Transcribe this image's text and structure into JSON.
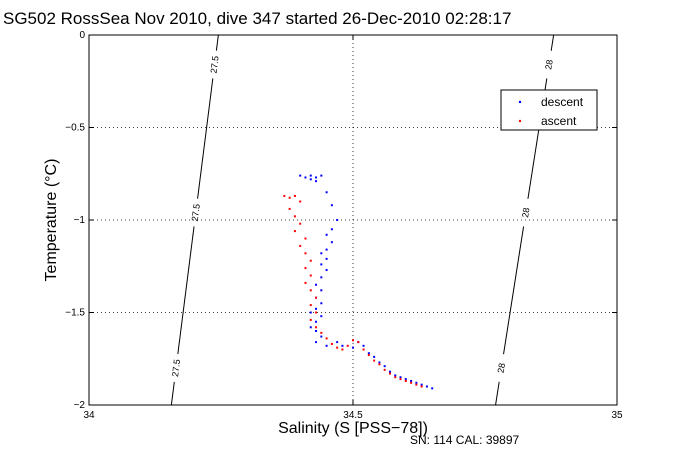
{
  "chart_data": {
    "type": "scatter",
    "title": "SG502 RossSea Nov 2010, dive 347 started 26-Dec-2010 02:28:17",
    "xlabel": "Salinity (S [PSS−78])",
    "ylabel": "Temperature (°C)",
    "xlim": [
      34,
      35
    ],
    "ylim": [
      -2,
      0
    ],
    "x_ticks": [
      34,
      34.5,
      35
    ],
    "x_tick_labels": [
      "34",
      "34.5",
      "35"
    ],
    "y_ticks": [
      0,
      -0.5,
      -1,
      -1.5,
      -2
    ],
    "y_tick_labels": [
      "0",
      "−0.5",
      "−1",
      "−1.5",
      "−2"
    ],
    "grid": true,
    "legend_position": "top-right",
    "series": [
      {
        "name": "descent",
        "color": "#0000ff",
        "points": [
          [
            34.4,
            -0.76
          ],
          [
            34.41,
            -0.77
          ],
          [
            34.42,
            -0.76
          ],
          [
            34.43,
            -0.77
          ],
          [
            34.44,
            -0.76
          ],
          [
            34.42,
            -0.78
          ],
          [
            34.43,
            -0.79
          ],
          [
            34.45,
            -0.85
          ],
          [
            34.46,
            -0.92
          ],
          [
            34.47,
            -1.0
          ],
          [
            34.46,
            -1.05
          ],
          [
            34.45,
            -1.08
          ],
          [
            34.46,
            -1.12
          ],
          [
            34.45,
            -1.16
          ],
          [
            34.44,
            -1.18
          ],
          [
            34.45,
            -1.21
          ],
          [
            34.44,
            -1.24
          ],
          [
            34.45,
            -1.27
          ],
          [
            34.44,
            -1.31
          ],
          [
            34.43,
            -1.35
          ],
          [
            34.44,
            -1.38
          ],
          [
            34.43,
            -1.42
          ],
          [
            34.44,
            -1.45
          ],
          [
            34.43,
            -1.48
          ],
          [
            34.42,
            -1.5
          ],
          [
            34.44,
            -1.52
          ],
          [
            34.43,
            -1.55
          ],
          [
            34.42,
            -1.58
          ],
          [
            34.43,
            -1.6
          ],
          [
            34.44,
            -1.63
          ],
          [
            34.43,
            -1.66
          ],
          [
            34.45,
            -1.68
          ],
          [
            34.47,
            -1.66
          ],
          [
            34.48,
            -1.68
          ],
          [
            34.5,
            -1.69
          ],
          [
            34.51,
            -1.66
          ],
          [
            34.52,
            -1.68
          ],
          [
            34.53,
            -1.72
          ],
          [
            34.54,
            -1.74
          ],
          [
            34.55,
            -1.77
          ],
          [
            34.56,
            -1.79
          ],
          [
            34.57,
            -1.82
          ],
          [
            34.58,
            -1.84
          ],
          [
            34.59,
            -1.85
          ],
          [
            34.6,
            -1.86
          ],
          [
            34.61,
            -1.87
          ],
          [
            34.62,
            -1.88
          ],
          [
            34.63,
            -1.89
          ],
          [
            34.64,
            -1.9
          ],
          [
            34.65,
            -1.91
          ]
        ]
      },
      {
        "name": "ascent",
        "color": "#ff0000",
        "points": [
          [
            34.37,
            -0.87
          ],
          [
            34.38,
            -0.88
          ],
          [
            34.39,
            -0.87
          ],
          [
            34.4,
            -0.9
          ],
          [
            34.38,
            -0.94
          ],
          [
            34.39,
            -0.98
          ],
          [
            34.4,
            -1.02
          ],
          [
            34.39,
            -1.06
          ],
          [
            34.41,
            -1.1
          ],
          [
            34.4,
            -1.14
          ],
          [
            34.41,
            -1.18
          ],
          [
            34.42,
            -1.22
          ],
          [
            34.41,
            -1.26
          ],
          [
            34.42,
            -1.3
          ],
          [
            34.41,
            -1.34
          ],
          [
            34.42,
            -1.38
          ],
          [
            34.43,
            -1.42
          ],
          [
            34.42,
            -1.46
          ],
          [
            34.43,
            -1.5
          ],
          [
            34.42,
            -1.54
          ],
          [
            34.43,
            -1.58
          ],
          [
            34.44,
            -1.61
          ],
          [
            34.45,
            -1.64
          ],
          [
            34.46,
            -1.67
          ],
          [
            34.47,
            -1.69
          ],
          [
            34.48,
            -1.7
          ],
          [
            34.49,
            -1.68
          ],
          [
            34.5,
            -1.65
          ],
          [
            34.51,
            -1.66
          ],
          [
            34.52,
            -1.7
          ],
          [
            34.53,
            -1.73
          ],
          [
            34.54,
            -1.76
          ],
          [
            34.55,
            -1.78
          ],
          [
            34.56,
            -1.81
          ],
          [
            34.57,
            -1.83
          ],
          [
            34.58,
            -1.85
          ],
          [
            34.59,
            -1.86
          ],
          [
            34.6,
            -1.87
          ],
          [
            34.61,
            -1.88
          ],
          [
            34.62,
            -1.89
          ],
          [
            34.63,
            -1.9
          ]
        ]
      }
    ],
    "density_contours": [
      {
        "label": "27.5",
        "points": [
          [
            34.156,
            -2
          ],
          [
            34.245,
            0
          ]
        ]
      },
      {
        "label": "28",
        "points": [
          [
            34.77,
            -2
          ],
          [
            34.88,
            0
          ]
        ]
      }
    ]
  },
  "footer": {
    "serial": "SN: 114  CAL: 39897"
  }
}
